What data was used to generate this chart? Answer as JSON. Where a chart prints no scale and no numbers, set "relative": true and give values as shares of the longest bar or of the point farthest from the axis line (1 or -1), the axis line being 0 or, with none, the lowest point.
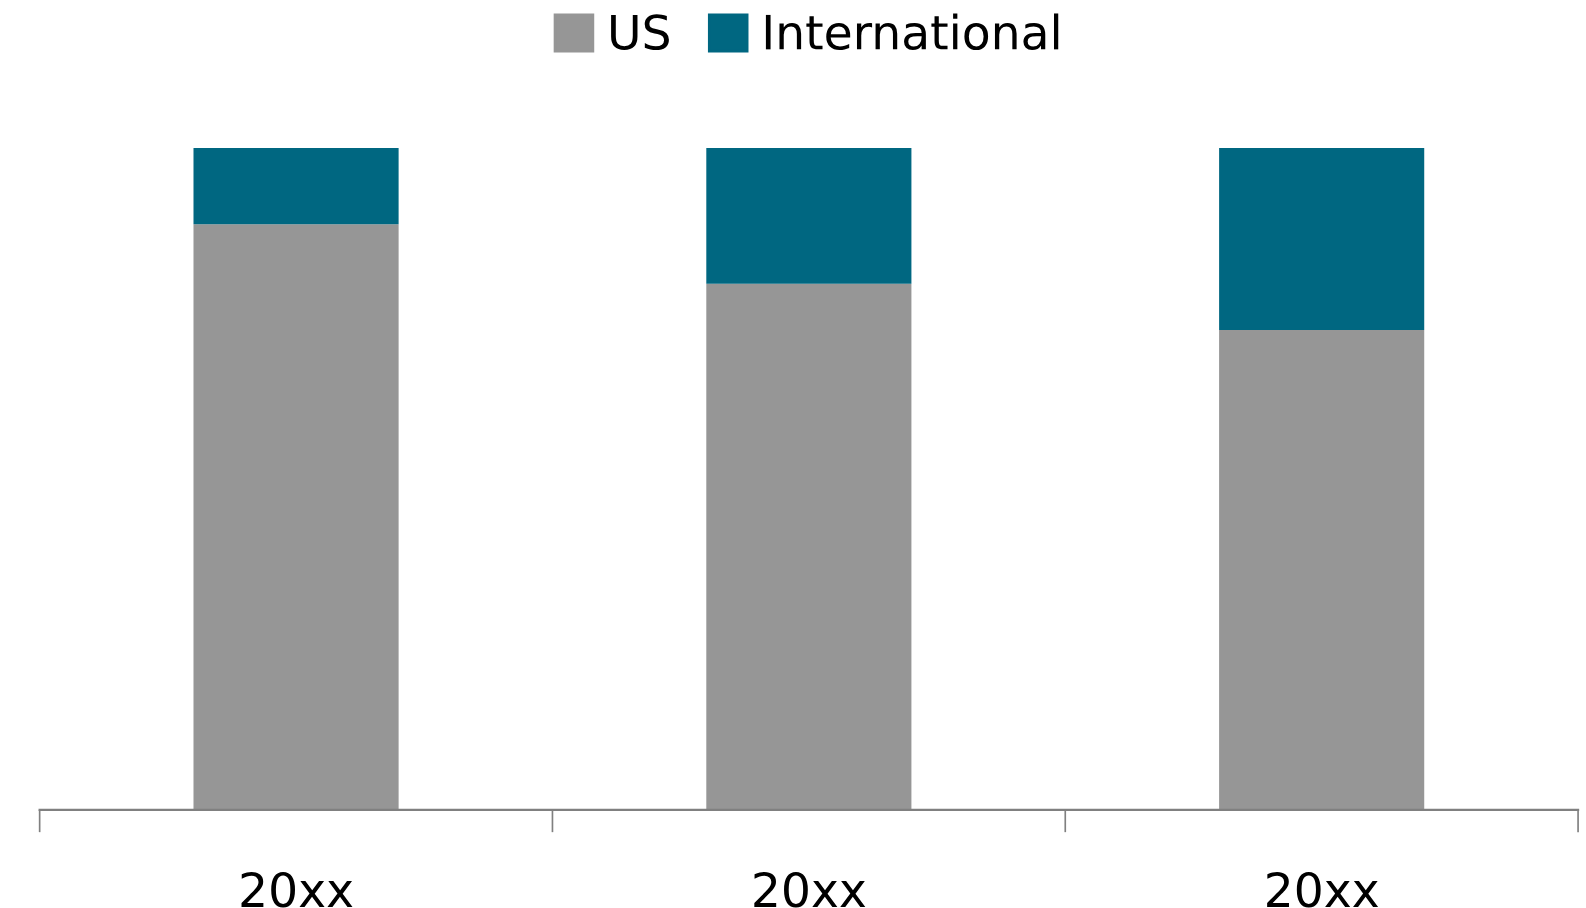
{
  "chart_data": {
    "type": "bar",
    "stacked": true,
    "relative": true,
    "legend": "top",
    "categories": [
      "20xx",
      "20xx",
      "20xx"
    ],
    "series": [
      {
        "name": "US",
        "color": "#969696",
        "values": [
          0.885,
          0.795,
          0.725
        ]
      },
      {
        "name": "International",
        "color": "#006781",
        "values": [
          0.115,
          0.205,
          0.275
        ]
      }
    ]
  }
}
